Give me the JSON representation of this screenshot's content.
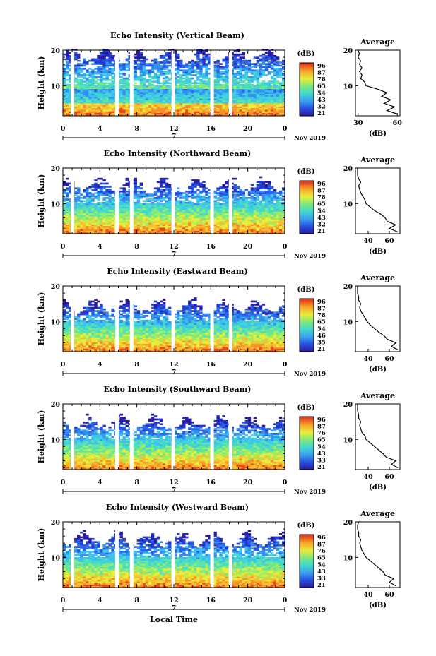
{
  "chart_data": [
    {
      "type": "heatmap",
      "title": "Echo Intensity (Vertical Beam)",
      "ylabel": "Height (km)",
      "x_ticks": [
        "0",
        "4",
        "8",
        "12",
        "16",
        "20",
        "0"
      ],
      "y_ticks": [
        "20",
        "10"
      ],
      "xlim": [
        0,
        24
      ],
      "ylim": [
        1.5,
        20
      ],
      "day_marker": "7",
      "date_label": "Nov 2019",
      "colorbar_title": "(dB)",
      "colorbar_ticks": [
        "96",
        "87",
        "78",
        "65",
        "54",
        "43",
        "32",
        "21"
      ],
      "colorbar_range": [
        21,
        96
      ],
      "data_gaps_hours": [
        1.0,
        5.8,
        7.4,
        11.9,
        16.1,
        18.1
      ],
      "echo_top_km": 19.5,
      "average_profile": {
        "title": "Average",
        "xlabel": "(dB)",
        "x_ticks": [
          "30",
          "60"
        ],
        "y_ticks": [
          "20",
          "10"
        ],
        "xlim": [
          28,
          62
        ],
        "profile": [
          [
            2,
            60
          ],
          [
            3,
            52
          ],
          [
            4,
            58
          ],
          [
            5,
            50
          ],
          [
            6,
            55
          ],
          [
            7,
            48
          ],
          [
            8,
            52
          ],
          [
            9,
            45
          ],
          [
            10,
            36
          ],
          [
            11,
            35
          ],
          [
            12,
            32
          ],
          [
            13,
            33
          ],
          [
            14,
            31
          ],
          [
            15,
            33
          ],
          [
            16,
            31
          ],
          [
            17,
            32
          ],
          [
            18,
            30
          ],
          [
            19,
            31
          ],
          [
            20,
            30
          ]
        ]
      }
    },
    {
      "type": "heatmap",
      "title": "Echo Intensity (Northward Beam)",
      "ylabel": "Height (km)",
      "x_ticks": [
        "0",
        "4",
        "8",
        "12",
        "16",
        "20",
        "0"
      ],
      "y_ticks": [
        "20",
        "10"
      ],
      "xlim": [
        0,
        24
      ],
      "ylim": [
        1.5,
        20
      ],
      "day_marker": "7",
      "date_label": "Nov 2019",
      "colorbar_title": "(dB)",
      "colorbar_ticks": [
        "96",
        "87",
        "78",
        "65",
        "54",
        "43",
        "32",
        "21"
      ],
      "colorbar_range": [
        21,
        96
      ],
      "data_gaps_hours": [
        1.0,
        5.8,
        7.4,
        11.9,
        16.1,
        18.1
      ],
      "echo_top_km": 16,
      "average_profile": {
        "title": "Average",
        "xlabel": "(dB)",
        "x_ticks": [
          "40",
          "60"
        ],
        "y_ticks": [
          "20",
          "10"
        ],
        "xlim": [
          28,
          70
        ],
        "profile": [
          [
            2,
            68
          ],
          [
            3,
            60
          ],
          [
            4,
            66
          ],
          [
            5,
            58
          ],
          [
            6,
            56
          ],
          [
            7,
            52
          ],
          [
            8,
            46
          ],
          [
            9,
            42
          ],
          [
            10,
            38
          ],
          [
            11,
            37
          ],
          [
            12,
            35
          ],
          [
            13,
            33
          ],
          [
            14,
            32
          ],
          [
            15,
            31
          ],
          [
            16,
            33
          ],
          [
            17,
            31
          ],
          [
            18,
            30
          ],
          [
            19,
            30
          ],
          [
            20,
            30
          ]
        ]
      }
    },
    {
      "type": "heatmap",
      "title": "Echo Intensity (Eastward Beam)",
      "ylabel": "Height (km)",
      "x_ticks": [
        "0",
        "4",
        "8",
        "12",
        "16",
        "20",
        "0"
      ],
      "y_ticks": [
        "20",
        "10"
      ],
      "xlim": [
        0,
        24
      ],
      "ylim": [
        1.5,
        20
      ],
      "day_marker": "7",
      "date_label": "Nov 2019",
      "colorbar_title": "(dB)",
      "colorbar_ticks": [
        "96",
        "87",
        "78",
        "65",
        "54",
        "46",
        "35",
        "21"
      ],
      "colorbar_range": [
        21,
        96
      ],
      "data_gaps_hours": [
        1.0,
        5.8,
        7.4,
        11.9,
        16.1,
        18.1
      ],
      "echo_top_km": 15,
      "average_profile": {
        "title": "Average",
        "xlabel": "(dB)",
        "x_ticks": [
          "40",
          "60"
        ],
        "y_ticks": [
          "20",
          "10"
        ],
        "xlim": [
          28,
          70
        ],
        "profile": [
          [
            2,
            68
          ],
          [
            3,
            62
          ],
          [
            4,
            66
          ],
          [
            5,
            58
          ],
          [
            6,
            55
          ],
          [
            7,
            50
          ],
          [
            8,
            46
          ],
          [
            9,
            42
          ],
          [
            10,
            39
          ],
          [
            11,
            37
          ],
          [
            12,
            35
          ],
          [
            13,
            33
          ],
          [
            14,
            32
          ],
          [
            15,
            33
          ],
          [
            16,
            31
          ],
          [
            17,
            31
          ],
          [
            18,
            30
          ],
          [
            19,
            30
          ],
          [
            20,
            30
          ]
        ]
      }
    },
    {
      "type": "heatmap",
      "title": "Echo Intensity (Southward Beam)",
      "ylabel": "Height (km)",
      "x_ticks": [
        "0",
        "4",
        "8",
        "12",
        "16",
        "20",
        "0"
      ],
      "y_ticks": [
        "20",
        "10"
      ],
      "xlim": [
        0,
        24
      ],
      "ylim": [
        1.5,
        20
      ],
      "day_marker": "7",
      "date_label": "Nov 2019",
      "colorbar_title": "(dB)",
      "colorbar_ticks": [
        "96",
        "87",
        "76",
        "65",
        "54",
        "43",
        "33",
        "21"
      ],
      "colorbar_range": [
        21,
        96
      ],
      "data_gaps_hours": [
        1.0,
        5.8,
        7.4,
        11.9,
        16.1,
        18.1
      ],
      "echo_top_km": 15.5,
      "average_profile": {
        "title": "Average",
        "xlabel": "(dB)",
        "x_ticks": [
          "40",
          "60"
        ],
        "y_ticks": [
          "20",
          "10"
        ],
        "xlim": [
          28,
          70
        ],
        "profile": [
          [
            2,
            68
          ],
          [
            3,
            62
          ],
          [
            4,
            66
          ],
          [
            5,
            57
          ],
          [
            6,
            54
          ],
          [
            7,
            50
          ],
          [
            8,
            46
          ],
          [
            9,
            42
          ],
          [
            10,
            38
          ],
          [
            11,
            37
          ],
          [
            12,
            34
          ],
          [
            13,
            33
          ],
          [
            14,
            32
          ],
          [
            15,
            33
          ],
          [
            16,
            31
          ],
          [
            17,
            31
          ],
          [
            18,
            30
          ],
          [
            19,
            30
          ],
          [
            20,
            30
          ]
        ]
      }
    },
    {
      "type": "heatmap",
      "title": "Echo Intensity (Westward Beam)",
      "ylabel": "Height (km)",
      "xlabel": "Local Time",
      "x_ticks": [
        "0",
        "4",
        "8",
        "12",
        "16",
        "20",
        "0"
      ],
      "y_ticks": [
        "20",
        "10"
      ],
      "xlim": [
        0,
        24
      ],
      "ylim": [
        1.5,
        20
      ],
      "day_marker": "7",
      "date_label": "Nov 2019",
      "colorbar_title": "(dB)",
      "colorbar_ticks": [
        "96",
        "87",
        "76",
        "65",
        "54",
        "43",
        "33",
        "21"
      ],
      "colorbar_range": [
        21,
        96
      ],
      "data_gaps_hours": [
        1.0,
        5.8,
        7.4,
        11.9,
        16.1,
        18.1
      ],
      "echo_top_km": 16,
      "average_profile": {
        "title": "Average",
        "xlabel": "(dB)",
        "x_ticks": [
          "40",
          "60"
        ],
        "y_ticks": [
          "20",
          "10"
        ],
        "xlim": [
          28,
          70
        ],
        "profile": [
          [
            2,
            66
          ],
          [
            3,
            60
          ],
          [
            4,
            64
          ],
          [
            5,
            56
          ],
          [
            6,
            54
          ],
          [
            7,
            50
          ],
          [
            8,
            46
          ],
          [
            9,
            42
          ],
          [
            10,
            38
          ],
          [
            11,
            36
          ],
          [
            12,
            34
          ],
          [
            13,
            33
          ],
          [
            14,
            32
          ],
          [
            15,
            33
          ],
          [
            16,
            31
          ],
          [
            17,
            31
          ],
          [
            18,
            30
          ],
          [
            19,
            30
          ],
          [
            20,
            31
          ]
        ]
      }
    }
  ]
}
